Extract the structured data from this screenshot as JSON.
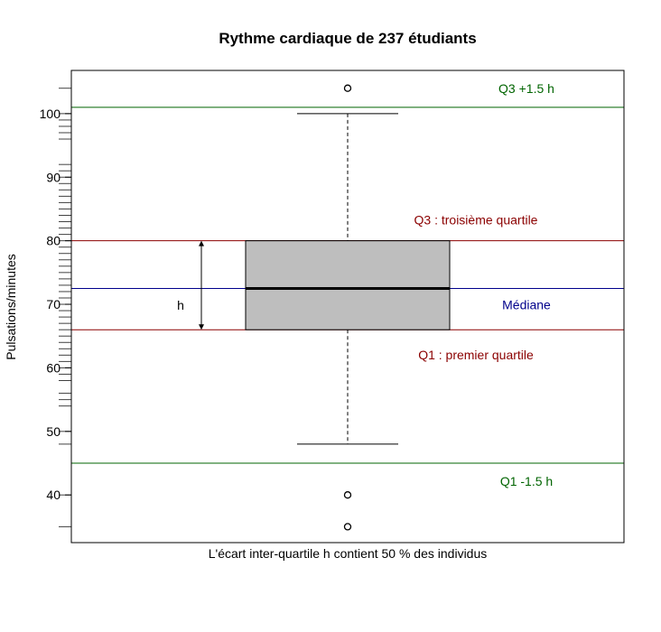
{
  "chart_data": {
    "type": "boxplot",
    "title": "Rythme cardiaque de 237 étudiants",
    "xlabel": "L'écart inter-quartile h contient 50 % des individus",
    "ylabel": "Pulsations/minutes",
    "ylim": [
      32.5,
      106.8
    ],
    "yticks": [
      40,
      50,
      60,
      70,
      80,
      90,
      100
    ],
    "box": {
      "q1": 66,
      "median": 72.5,
      "q3": 80,
      "whisker_low": 48,
      "whisker_high": 100
    },
    "outliers": [
      104,
      40,
      35
    ],
    "rug_values": [
      104,
      100,
      99,
      98,
      97,
      96,
      92,
      91,
      90,
      89,
      88,
      87,
      86,
      85,
      84,
      83,
      82,
      81,
      80,
      79,
      78,
      77,
      76,
      75,
      74,
      73,
      72,
      71,
      70,
      69,
      68,
      67,
      66,
      65,
      64,
      63,
      62,
      61,
      60,
      59,
      58,
      56,
      55,
      54,
      50,
      48,
      40,
      35
    ],
    "reference_lines": [
      {
        "value": 101,
        "label": "Q3 +1.5 h",
        "color": "#006400"
      },
      {
        "value": 80,
        "label": "Q3 : troisième quartile",
        "color": "#8b0000"
      },
      {
        "value": 72.5,
        "label": "Médiane",
        "color": "#00008b"
      },
      {
        "value": 66,
        "label": "Q1 : premier quartile",
        "color": "#8b0000"
      },
      {
        "value": 45,
        "label": "Q1 -1.5 h",
        "color": "#006400"
      }
    ],
    "h_label": "h",
    "colors": {
      "box_fill": "#bebebe",
      "green": "#006400",
      "red": "#8b0000",
      "blue": "#00008b"
    },
    "grid": false,
    "legend": "none"
  }
}
